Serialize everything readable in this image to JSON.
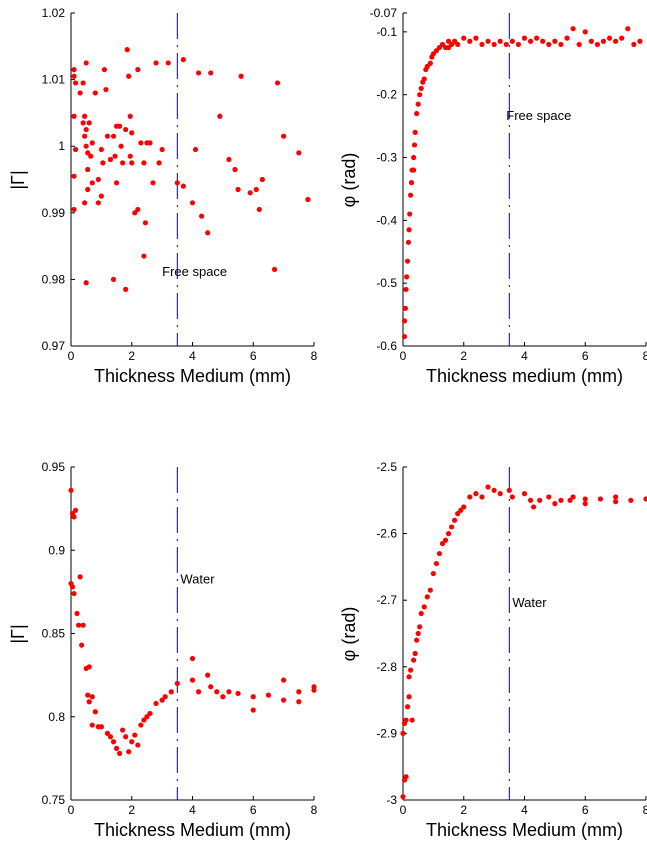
{
  "chart_data": [
    {
      "type": "scatter",
      "xlabel": "Thickness Medium (mm)",
      "ylabel": "|Γ|",
      "xlim": [
        0,
        8
      ],
      "ylim": [
        0.97,
        1.02
      ],
      "xticks": [
        0,
        2,
        4,
        6,
        8
      ],
      "xtick_labels": [
        "0",
        "2",
        "4",
        "6",
        "8"
      ],
      "yticks": [
        0.97,
        0.98,
        0.99,
        1.0,
        1.01,
        1.02
      ],
      "ytick_labels": [
        "0.97",
        "0.98",
        "0.99",
        "1",
        "1.01",
        "1.02"
      ],
      "vline_x": 3.5,
      "annotation": {
        "text": "Free space",
        "x": 3.0,
        "y": 0.9805
      },
      "marker_color": "#ff0000",
      "line_color": "#0000cc",
      "grid": false,
      "points": [
        [
          0.1,
          1.0115
        ],
        [
          0.1,
          1.0105
        ],
        [
          0.15,
          1.0095
        ],
        [
          0.1,
          1.0045
        ],
        [
          0.15,
          0.9995
        ],
        [
          0.1,
          0.9955
        ],
        [
          0.1,
          0.9905
        ],
        [
          0.3,
          1.008
        ],
        [
          0.4,
          1.0095
        ],
        [
          0.5,
          1.0125
        ],
        [
          0.4,
          1.0035
        ],
        [
          0.45,
          1.0045
        ],
        [
          0.5,
          1.0025
        ],
        [
          0.45,
          1.0015
        ],
        [
          0.5,
          1.0
        ],
        [
          0.55,
          0.999
        ],
        [
          0.6,
          1.0035
        ],
        [
          0.55,
          0.9965
        ],
        [
          0.65,
          0.9985
        ],
        [
          0.7,
          1.0005
        ],
        [
          0.55,
          0.9935
        ],
        [
          0.45,
          0.9915
        ],
        [
          0.7,
          0.9945
        ],
        [
          0.8,
          1.008
        ],
        [
          0.9,
          0.995
        ],
        [
          1.0,
          0.9995
        ],
        [
          0.9,
          0.9915
        ],
        [
          1.0,
          0.9925
        ],
        [
          1.05,
          0.9975
        ],
        [
          1.1,
          1.0115
        ],
        [
          1.15,
          1.0085
        ],
        [
          1.2,
          1.0015
        ],
        [
          1.3,
          0.998
        ],
        [
          1.4,
          1.0015
        ],
        [
          1.5,
          1.003
        ],
        [
          1.45,
          0.9985
        ],
        [
          1.5,
          0.9945
        ],
        [
          1.6,
          1.003
        ],
        [
          1.65,
          1.0
        ],
        [
          1.7,
          0.9975
        ],
        [
          1.8,
          1.0025
        ],
        [
          1.85,
          1.0145
        ],
        [
          1.9,
          1.0105
        ],
        [
          1.95,
          1.0045
        ],
        [
          2.0,
          1.002
        ],
        [
          1.95,
          0.9985
        ],
        [
          2.0,
          0.9975
        ],
        [
          2.1,
          0.99
        ],
        [
          2.2,
          0.9905
        ],
        [
          2.2,
          1.0115
        ],
        [
          2.3,
          1.0005
        ],
        [
          2.4,
          0.9975
        ],
        [
          2.45,
          0.9885
        ],
        [
          2.5,
          1.0005
        ],
        [
          2.6,
          1.0005
        ],
        [
          2.7,
          0.9945
        ],
        [
          2.8,
          1.0125
        ],
        [
          2.9,
          0.9975
        ],
        [
          3.0,
          0.9995
        ],
        [
          3.2,
          1.0125
        ],
        [
          3.5,
          0.9945
        ],
        [
          3.7,
          0.994
        ],
        [
          3.7,
          1.013
        ],
        [
          4.0,
          0.9915
        ],
        [
          4.1,
          0.9995
        ],
        [
          4.2,
          1.011
        ],
        [
          4.3,
          0.9895
        ],
        [
          4.5,
          0.987
        ],
        [
          4.6,
          1.011
        ],
        [
          4.9,
          1.0045
        ],
        [
          5.2,
          0.998
        ],
        [
          5.4,
          0.9965
        ],
        [
          5.5,
          0.9935
        ],
        [
          5.6,
          1.0105
        ],
        [
          5.9,
          0.993
        ],
        [
          6.1,
          0.9935
        ],
        [
          6.2,
          0.9905
        ],
        [
          6.3,
          0.995
        ],
        [
          6.7,
          0.9815
        ],
        [
          6.8,
          1.0095
        ],
        [
          7.0,
          1.0015
        ],
        [
          7.5,
          0.999
        ],
        [
          7.8,
          0.992
        ],
        [
          1.8,
          0.9785
        ],
        [
          0.5,
          0.9795
        ],
        [
          1.4,
          0.98
        ],
        [
          2.4,
          0.9835
        ]
      ]
    },
    {
      "type": "scatter",
      "xlabel": "Thickness medium (mm)",
      "ylabel": "φ (rad)",
      "xlim": [
        0,
        8
      ],
      "ylim": [
        -0.6,
        -0.07
      ],
      "xticks": [
        0,
        2,
        4,
        6,
        8
      ],
      "xtick_labels": [
        "0",
        "2",
        "4",
        "6",
        "8"
      ],
      "yticks": [
        -0.6,
        -0.5,
        -0.4,
        -0.3,
        -0.2,
        -0.1,
        -0.07
      ],
      "ytick_labels": [
        "-0.6",
        "-0.5",
        "-0.4",
        "-0.3",
        "-0.2",
        "-0.1",
        "-0.07"
      ],
      "vline_x": 3.5,
      "annotation": {
        "text": "Free space",
        "x": 3.4,
        "y": -0.24
      },
      "marker_color": "#ff0000",
      "line_color": "#0000cc",
      "grid": false,
      "points": [
        [
          0.05,
          -0.585
        ],
        [
          0.05,
          -0.56
        ],
        [
          0.08,
          -0.54
        ],
        [
          0.1,
          -0.51
        ],
        [
          0.12,
          -0.49
        ],
        [
          0.15,
          -0.465
        ],
        [
          0.18,
          -0.435
        ],
        [
          0.2,
          -0.415
        ],
        [
          0.22,
          -0.39
        ],
        [
          0.25,
          -0.36
        ],
        [
          0.28,
          -0.34
        ],
        [
          0.3,
          -0.32
        ],
        [
          0.35,
          -0.32
        ],
        [
          0.35,
          -0.3
        ],
        [
          0.38,
          -0.28
        ],
        [
          0.4,
          -0.26
        ],
        [
          0.45,
          -0.23
        ],
        [
          0.5,
          -0.215
        ],
        [
          0.55,
          -0.2
        ],
        [
          0.6,
          -0.19
        ],
        [
          0.65,
          -0.18
        ],
        [
          0.7,
          -0.175
        ],
        [
          0.75,
          -0.16
        ],
        [
          0.8,
          -0.155
        ],
        [
          0.9,
          -0.15
        ],
        [
          0.95,
          -0.14
        ],
        [
          1.0,
          -0.135
        ],
        [
          1.1,
          -0.13
        ],
        [
          1.2,
          -0.125
        ],
        [
          1.3,
          -0.12
        ],
        [
          1.4,
          -0.125
        ],
        [
          1.5,
          -0.115
        ],
        [
          1.5,
          -0.125
        ],
        [
          1.6,
          -0.12
        ],
        [
          1.7,
          -0.115
        ],
        [
          1.8,
          -0.12
        ],
        [
          2.0,
          -0.11
        ],
        [
          2.2,
          -0.115
        ],
        [
          2.4,
          -0.11
        ],
        [
          2.6,
          -0.12
        ],
        [
          2.8,
          -0.115
        ],
        [
          3.0,
          -0.12
        ],
        [
          3.2,
          -0.115
        ],
        [
          3.4,
          -0.12
        ],
        [
          3.6,
          -0.115
        ],
        [
          3.8,
          -0.12
        ],
        [
          4.0,
          -0.11
        ],
        [
          4.2,
          -0.115
        ],
        [
          4.4,
          -0.11
        ],
        [
          4.6,
          -0.115
        ],
        [
          4.8,
          -0.12
        ],
        [
          5.0,
          -0.115
        ],
        [
          5.2,
          -0.12
        ],
        [
          5.4,
          -0.11
        ],
        [
          5.6,
          -0.095
        ],
        [
          5.8,
          -0.12
        ],
        [
          6.0,
          -0.1
        ],
        [
          6.2,
          -0.115
        ],
        [
          6.4,
          -0.12
        ],
        [
          6.6,
          -0.115
        ],
        [
          6.8,
          -0.11
        ],
        [
          7.0,
          -0.115
        ],
        [
          7.2,
          -0.11
        ],
        [
          7.4,
          -0.095
        ],
        [
          7.6,
          -0.12
        ],
        [
          7.8,
          -0.115
        ]
      ]
    },
    {
      "type": "scatter",
      "xlabel": "Thickness Medium (mm)",
      "ylabel": "|Γ|",
      "xlim": [
        0,
        8
      ],
      "ylim": [
        0.75,
        0.95
      ],
      "xticks": [
        0,
        2,
        4,
        6,
        8
      ],
      "xtick_labels": [
        "0",
        "2",
        "4",
        "6",
        "8"
      ],
      "yticks": [
        0.75,
        0.8,
        0.85,
        0.9,
        0.95
      ],
      "ytick_labels": [
        "0.75",
        "0.8",
        "0.85",
        "0.9",
        "0.95"
      ],
      "vline_x": 3.5,
      "annotation": {
        "text": "Water",
        "x": 3.6,
        "y": 0.88
      },
      "marker_color": "#ff0000",
      "line_color": "#0000cc",
      "grid": false,
      "points": [
        [
          0.0,
          0.936
        ],
        [
          0.05,
          0.922
        ],
        [
          0.1,
          0.92
        ],
        [
          0.15,
          0.924
        ],
        [
          0.0,
          0.88
        ],
        [
          0.05,
          0.878
        ],
        [
          0.1,
          0.874
        ],
        [
          0.2,
          0.862
        ],
        [
          0.3,
          0.884
        ],
        [
          0.25,
          0.855
        ],
        [
          0.35,
          0.843
        ],
        [
          0.4,
          0.855
        ],
        [
          0.5,
          0.829
        ],
        [
          0.6,
          0.83
        ],
        [
          0.55,
          0.813
        ],
        [
          0.7,
          0.812
        ],
        [
          0.6,
          0.809
        ],
        [
          0.8,
          0.803
        ],
        [
          0.7,
          0.795
        ],
        [
          0.9,
          0.794
        ],
        [
          1.0,
          0.794
        ],
        [
          1.2,
          0.79
        ],
        [
          1.3,
          0.788
        ],
        [
          1.4,
          0.785
        ],
        [
          1.5,
          0.781
        ],
        [
          1.6,
          0.778
        ],
        [
          1.7,
          0.792
        ],
        [
          1.8,
          0.788
        ],
        [
          1.9,
          0.779
        ],
        [
          2.0,
          0.785
        ],
        [
          2.1,
          0.789
        ],
        [
          2.2,
          0.783
        ],
        [
          2.3,
          0.795
        ],
        [
          2.4,
          0.798
        ],
        [
          2.5,
          0.8
        ],
        [
          2.6,
          0.802
        ],
        [
          2.8,
          0.808
        ],
        [
          3.0,
          0.81
        ],
        [
          3.1,
          0.812
        ],
        [
          3.3,
          0.815
        ],
        [
          3.5,
          0.82
        ],
        [
          4.0,
          0.835
        ],
        [
          4.0,
          0.822
        ],
        [
          4.2,
          0.815
        ],
        [
          4.5,
          0.825
        ],
        [
          4.6,
          0.818
        ],
        [
          4.8,
          0.815
        ],
        [
          5.0,
          0.812
        ],
        [
          5.2,
          0.815
        ],
        [
          5.5,
          0.814
        ],
        [
          6.0,
          0.812
        ],
        [
          6.0,
          0.804
        ],
        [
          6.5,
          0.813
        ],
        [
          7.0,
          0.822
        ],
        [
          7.0,
          0.81
        ],
        [
          7.5,
          0.815
        ],
        [
          7.5,
          0.809
        ],
        [
          8.0,
          0.816
        ],
        [
          8.0,
          0.818
        ]
      ]
    },
    {
      "type": "scatter",
      "xlabel": "Thickness Medium (mm)",
      "ylabel": "φ (rad)",
      "xlim": [
        0,
        8
      ],
      "ylim": [
        -3.0,
        -2.5
      ],
      "xticks": [
        0,
        2,
        4,
        6,
        8
      ],
      "xtick_labels": [
        "0",
        "2",
        "4",
        "6",
        "8"
      ],
      "yticks": [
        -3.0,
        -2.9,
        -2.8,
        -2.7,
        -2.6,
        -2.5
      ],
      "ytick_labels": [
        "-3",
        "-2.9",
        "-2.8",
        "-2.7",
        "-2.6",
        "-2.5"
      ],
      "vline_x": 3.5,
      "annotation": {
        "text": "Water",
        "x": 3.6,
        "y": -2.71
      },
      "marker_color": "#ff0000",
      "line_color": "#0000cc",
      "grid": false,
      "points": [
        [
          0.0,
          -2.995
        ],
        [
          0.05,
          -2.97
        ],
        [
          0.1,
          -2.965
        ],
        [
          0.0,
          -2.9
        ],
        [
          0.05,
          -2.885
        ],
        [
          0.1,
          -2.88
        ],
        [
          0.15,
          -2.86
        ],
        [
          0.2,
          -2.845
        ],
        [
          0.2,
          -2.815
        ],
        [
          0.25,
          -2.805
        ],
        [
          0.3,
          -2.88
        ],
        [
          0.35,
          -2.79
        ],
        [
          0.4,
          -2.78
        ],
        [
          0.45,
          -2.76
        ],
        [
          0.5,
          -2.75
        ],
        [
          0.55,
          -2.74
        ],
        [
          0.6,
          -2.72
        ],
        [
          0.7,
          -2.71
        ],
        [
          0.8,
          -2.695
        ],
        [
          0.9,
          -2.685
        ],
        [
          1.0,
          -2.66
        ],
        [
          1.1,
          -2.645
        ],
        [
          1.2,
          -2.63
        ],
        [
          1.3,
          -2.615
        ],
        [
          1.4,
          -2.61
        ],
        [
          1.5,
          -2.6
        ],
        [
          1.6,
          -2.59
        ],
        [
          1.7,
          -2.58
        ],
        [
          1.8,
          -2.57
        ],
        [
          1.9,
          -2.565
        ],
        [
          2.0,
          -2.56
        ],
        [
          2.2,
          -2.545
        ],
        [
          2.4,
          -2.54
        ],
        [
          2.6,
          -2.545
        ],
        [
          2.8,
          -2.53
        ],
        [
          3.0,
          -2.535
        ],
        [
          3.2,
          -2.54
        ],
        [
          3.5,
          -2.535
        ],
        [
          3.6,
          -2.545
        ],
        [
          4.0,
          -2.54
        ],
        [
          4.2,
          -2.55
        ],
        [
          4.3,
          -2.56
        ],
        [
          4.5,
          -2.55
        ],
        [
          4.8,
          -2.545
        ],
        [
          5.0,
          -2.555
        ],
        [
          5.2,
          -2.55
        ],
        [
          5.5,
          -2.55
        ],
        [
          5.6,
          -2.545
        ],
        [
          6.0,
          -2.548
        ],
        [
          6.0,
          -2.555
        ],
        [
          6.5,
          -2.548
        ],
        [
          7.0,
          -2.552
        ],
        [
          7.0,
          -2.545
        ],
        [
          7.5,
          -2.55
        ],
        [
          8.0,
          -2.548
        ]
      ]
    }
  ]
}
